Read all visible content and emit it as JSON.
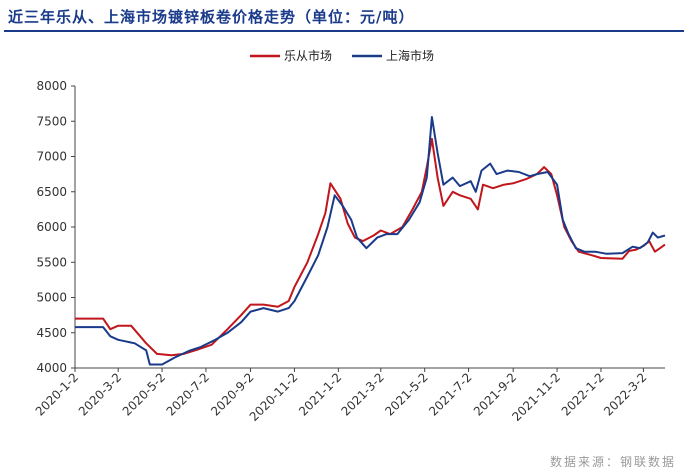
{
  "title": "近三年乐从、上海市场镀锌板卷价格走势（单位：元/吨）",
  "source": "数据来源：钢联数据",
  "chart_data": {
    "type": "line",
    "title": "近三年乐从、上海市场镀锌板卷价格走势（单位：元/吨）",
    "xlabel": "",
    "ylabel": "",
    "ylim": [
      4000,
      8000
    ],
    "yticks": [
      4000,
      4500,
      5000,
      5500,
      6000,
      6500,
      7000,
      7500,
      8000
    ],
    "x_start": "2020-01-02",
    "x_end": "2022-04-01",
    "xticks": [
      "2020-1-2",
      "2020-3-2",
      "2020-5-2",
      "2020-7-2",
      "2020-9-2",
      "2020-11-2",
      "2021-1-2",
      "2021-3-2",
      "2021-5-2",
      "2021-7-2",
      "2021-9-2",
      "2021-11-2",
      "2022-1-2",
      "2022-3-2"
    ],
    "grid": false,
    "legend_position": "top-center",
    "series": [
      {
        "name": "乐从市场",
        "color": "#c0161c",
        "points": [
          [
            "2020-01-02",
            4700
          ],
          [
            "2020-02-10",
            4700
          ],
          [
            "2020-02-20",
            4550
          ],
          [
            "2020-03-02",
            4600
          ],
          [
            "2020-03-20",
            4600
          ],
          [
            "2020-04-10",
            4350
          ],
          [
            "2020-04-25",
            4200
          ],
          [
            "2020-05-15",
            4180
          ],
          [
            "2020-06-01",
            4200
          ],
          [
            "2020-06-20",
            4260
          ],
          [
            "2020-07-10",
            4330
          ],
          [
            "2020-08-01",
            4550
          ],
          [
            "2020-08-20",
            4750
          ],
          [
            "2020-09-02",
            4900
          ],
          [
            "2020-09-20",
            4900
          ],
          [
            "2020-10-10",
            4870
          ],
          [
            "2020-10-25",
            4950
          ],
          [
            "2020-11-02",
            5150
          ],
          [
            "2020-11-20",
            5500
          ],
          [
            "2020-12-05",
            5900
          ],
          [
            "2020-12-15",
            6200
          ],
          [
            "2020-12-22",
            6620
          ],
          [
            "2021-01-05",
            6400
          ],
          [
            "2021-01-15",
            6050
          ],
          [
            "2021-01-25",
            5850
          ],
          [
            "2021-02-05",
            5800
          ],
          [
            "2021-02-20",
            5880
          ],
          [
            "2021-03-02",
            5950
          ],
          [
            "2021-03-15",
            5900
          ],
          [
            "2021-04-01",
            6000
          ],
          [
            "2021-04-15",
            6250
          ],
          [
            "2021-04-28",
            6500
          ],
          [
            "2021-05-05",
            6850
          ],
          [
            "2021-05-12",
            7250
          ],
          [
            "2021-05-20",
            6700
          ],
          [
            "2021-05-28",
            6300
          ],
          [
            "2021-06-10",
            6500
          ],
          [
            "2021-06-20",
            6450
          ],
          [
            "2021-07-05",
            6400
          ],
          [
            "2021-07-15",
            6250
          ],
          [
            "2021-07-22",
            6600
          ],
          [
            "2021-08-05",
            6550
          ],
          [
            "2021-08-20",
            6600
          ],
          [
            "2021-09-02",
            6620
          ],
          [
            "2021-09-20",
            6680
          ],
          [
            "2021-10-05",
            6750
          ],
          [
            "2021-10-15",
            6850
          ],
          [
            "2021-10-25",
            6750
          ],
          [
            "2021-11-02",
            6450
          ],
          [
            "2021-11-12",
            6000
          ],
          [
            "2021-11-22",
            5800
          ],
          [
            "2021-12-02",
            5650
          ],
          [
            "2021-12-20",
            5600
          ],
          [
            "2022-01-02",
            5560
          ],
          [
            "2022-02-01",
            5550
          ],
          [
            "2022-02-10",
            5660
          ],
          [
            "2022-02-20",
            5680
          ],
          [
            "2022-03-02",
            5730
          ],
          [
            "2022-03-10",
            5800
          ],
          [
            "2022-03-18",
            5650
          ],
          [
            "2022-03-25",
            5700
          ],
          [
            "2022-04-01",
            5750
          ]
        ]
      },
      {
        "name": "上海市场",
        "color": "#1a3a8a",
        "points": [
          [
            "2020-01-02",
            4580
          ],
          [
            "2020-02-10",
            4580
          ],
          [
            "2020-02-20",
            4450
          ],
          [
            "2020-03-02",
            4400
          ],
          [
            "2020-03-25",
            4350
          ],
          [
            "2020-04-10",
            4250
          ],
          [
            "2020-04-15",
            4050
          ],
          [
            "2020-05-02",
            4050
          ],
          [
            "2020-05-20",
            4150
          ],
          [
            "2020-06-10",
            4250
          ],
          [
            "2020-06-25",
            4300
          ],
          [
            "2020-07-15",
            4400
          ],
          [
            "2020-08-01",
            4500
          ],
          [
            "2020-08-20",
            4650
          ],
          [
            "2020-09-02",
            4800
          ],
          [
            "2020-09-20",
            4850
          ],
          [
            "2020-10-10",
            4800
          ],
          [
            "2020-10-25",
            4850
          ],
          [
            "2020-11-02",
            4950
          ],
          [
            "2020-11-20",
            5300
          ],
          [
            "2020-12-05",
            5600
          ],
          [
            "2020-12-18",
            6000
          ],
          [
            "2020-12-28",
            6450
          ],
          [
            "2021-01-08",
            6300
          ],
          [
            "2021-01-20",
            6100
          ],
          [
            "2021-01-28",
            5850
          ],
          [
            "2021-02-10",
            5700
          ],
          [
            "2021-02-25",
            5850
          ],
          [
            "2021-03-10",
            5900
          ],
          [
            "2021-03-25",
            5900
          ],
          [
            "2021-04-10",
            6100
          ],
          [
            "2021-04-25",
            6350
          ],
          [
            "2021-05-05",
            6700
          ],
          [
            "2021-05-12",
            7560
          ],
          [
            "2021-05-20",
            7050
          ],
          [
            "2021-05-28",
            6600
          ],
          [
            "2021-06-10",
            6700
          ],
          [
            "2021-06-20",
            6580
          ],
          [
            "2021-07-05",
            6650
          ],
          [
            "2021-07-12",
            6500
          ],
          [
            "2021-07-20",
            6800
          ],
          [
            "2021-08-01",
            6900
          ],
          [
            "2021-08-10",
            6750
          ],
          [
            "2021-08-25",
            6800
          ],
          [
            "2021-09-10",
            6780
          ],
          [
            "2021-09-25",
            6720
          ],
          [
            "2021-10-05",
            6750
          ],
          [
            "2021-10-20",
            6780
          ],
          [
            "2021-11-02",
            6600
          ],
          [
            "2021-11-10",
            6100
          ],
          [
            "2021-11-18",
            5900
          ],
          [
            "2021-11-28",
            5700
          ],
          [
            "2021-12-10",
            5650
          ],
          [
            "2021-12-25",
            5650
          ],
          [
            "2022-01-10",
            5620
          ],
          [
            "2022-02-01",
            5630
          ],
          [
            "2022-02-15",
            5720
          ],
          [
            "2022-02-25",
            5700
          ],
          [
            "2022-03-08",
            5780
          ],
          [
            "2022-03-15",
            5920
          ],
          [
            "2022-03-22",
            5850
          ],
          [
            "2022-04-01",
            5880
          ]
        ]
      }
    ]
  }
}
